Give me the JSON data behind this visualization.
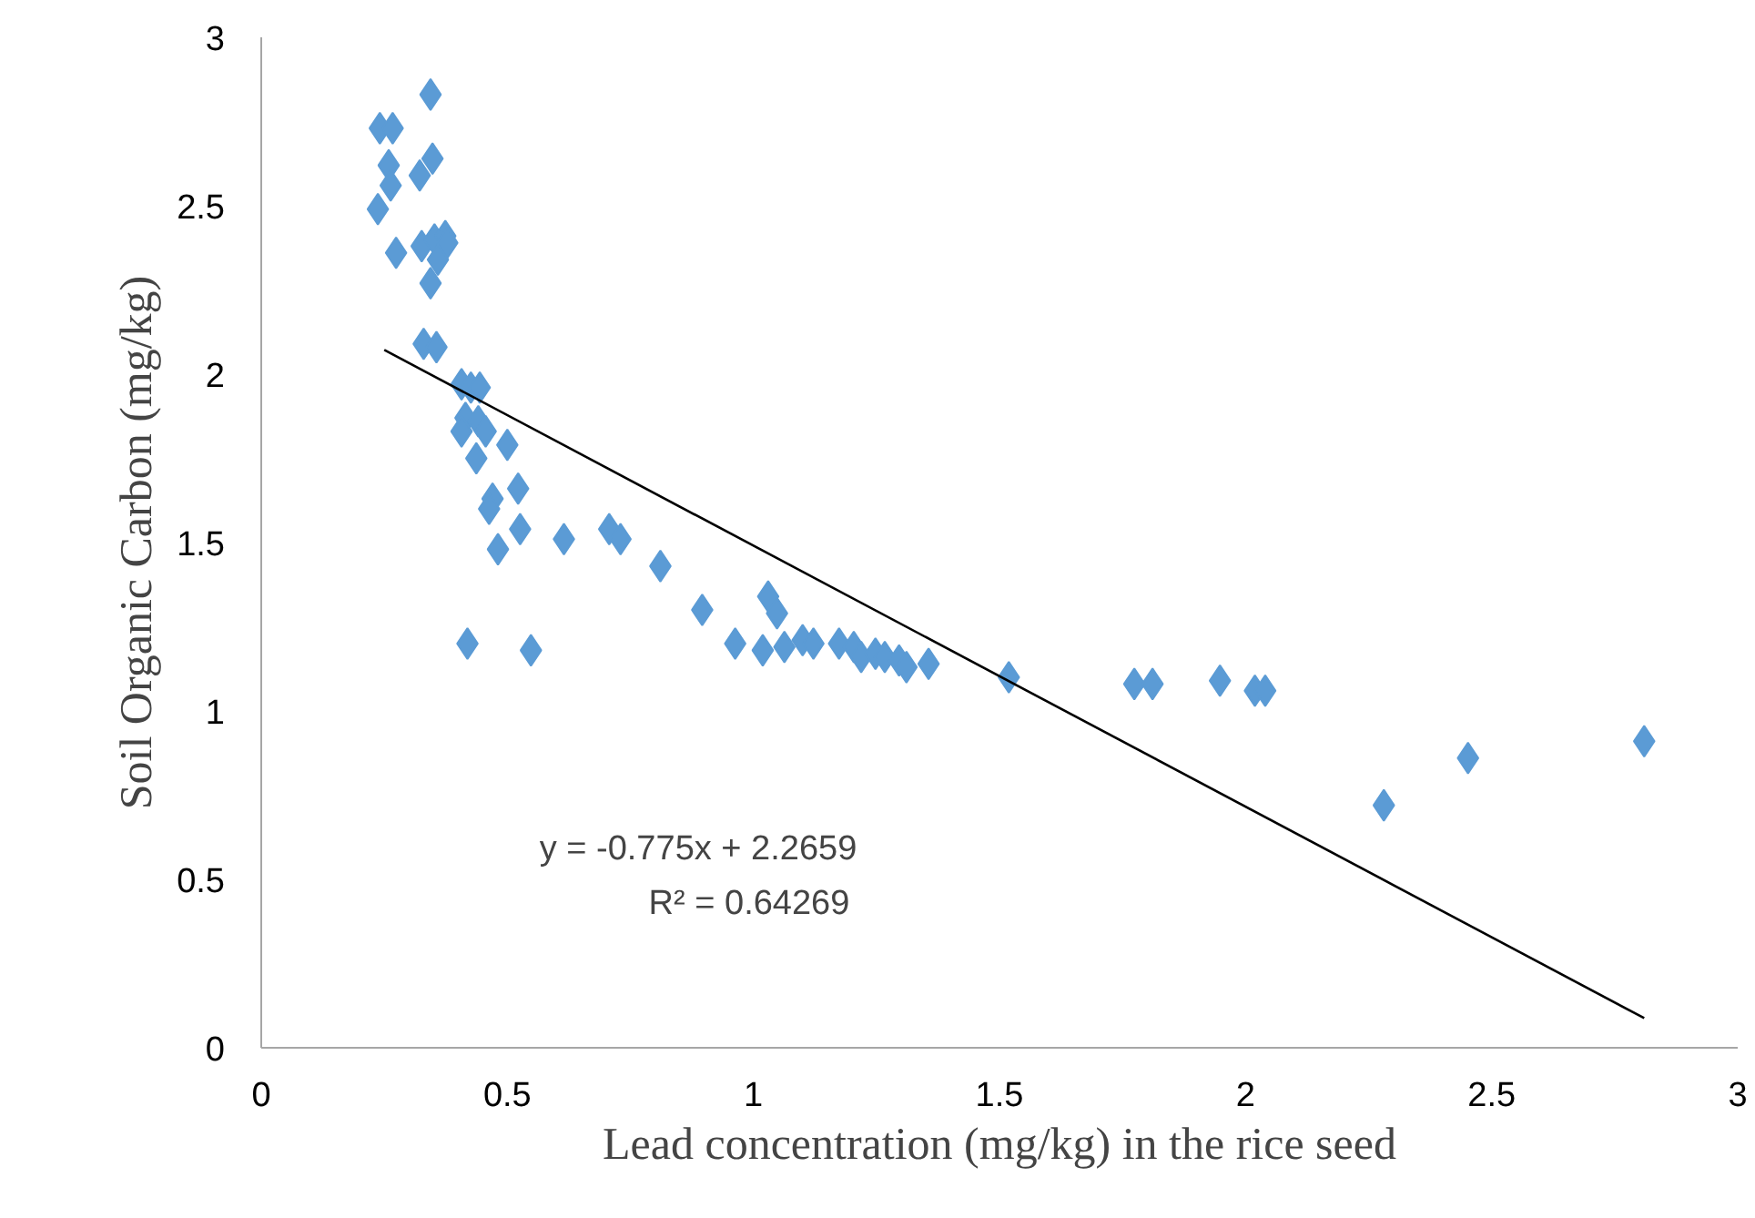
{
  "chart_data": {
    "type": "scatter",
    "xlabel": "Lead concentration (mg/kg) in the rice seed",
    "ylabel": "Soil Organic Carbon (mg/kg)",
    "xlim": [
      0,
      3
    ],
    "ylim": [
      0,
      3
    ],
    "xticks": [
      0,
      0.5,
      1,
      1.5,
      2,
      2.5,
      3
    ],
    "yticks": [
      0,
      0.5,
      1,
      1.5,
      2,
      2.5,
      3
    ],
    "grid": false,
    "annotations": [
      "y = -0.775x + 2.2659",
      "R² = 0.64269"
    ],
    "series": [
      {
        "color": "#5b9bd5",
        "marker": "diamond",
        "x": [
          0.344,
          0.241,
          0.267,
          0.259,
          0.348,
          0.263,
          0.322,
          0.237,
          0.274,
          0.326,
          0.352,
          0.374,
          0.378,
          0.359,
          0.344,
          0.33,
          0.356,
          0.407,
          0.426,
          0.444,
          0.415,
          0.441,
          0.407,
          0.456,
          0.5,
          0.437,
          0.47,
          0.522,
          0.463,
          0.481,
          0.526,
          0.615,
          0.707,
          0.73,
          0.811,
          0.896,
          0.419,
          0.548,
          0.963,
          1.019,
          1.03,
          1.048,
          1.063,
          1.1,
          1.122,
          1.174,
          1.204,
          1.219,
          1.248,
          1.267,
          1.296,
          1.311,
          1.356,
          1.519,
          1.774,
          1.811,
          1.948,
          2.019,
          2.04,
          2.281,
          2.452,
          2.81
        ],
        "values": [
          2.83,
          2.73,
          2.73,
          2.62,
          2.64,
          2.56,
          2.59,
          2.49,
          2.36,
          2.38,
          2.4,
          2.41,
          2.39,
          2.34,
          2.27,
          2.09,
          2.08,
          1.97,
          1.96,
          1.96,
          1.87,
          1.86,
          1.83,
          1.83,
          1.79,
          1.75,
          1.63,
          1.66,
          1.6,
          1.48,
          1.54,
          1.51,
          1.54,
          1.51,
          1.43,
          1.3,
          1.2,
          1.18,
          1.2,
          1.18,
          1.34,
          1.29,
          1.19,
          1.21,
          1.2,
          1.2,
          1.19,
          1.16,
          1.17,
          1.16,
          1.15,
          1.13,
          1.14,
          1.1,
          1.08,
          1.08,
          1.09,
          1.06,
          1.06,
          0.72,
          0.86,
          0.91
        ]
      },
      {
        "type": "line",
        "color": "#000000",
        "x": [
          0.25,
          2.81
        ],
        "values": [
          2.072,
          0.088
        ]
      }
    ]
  }
}
